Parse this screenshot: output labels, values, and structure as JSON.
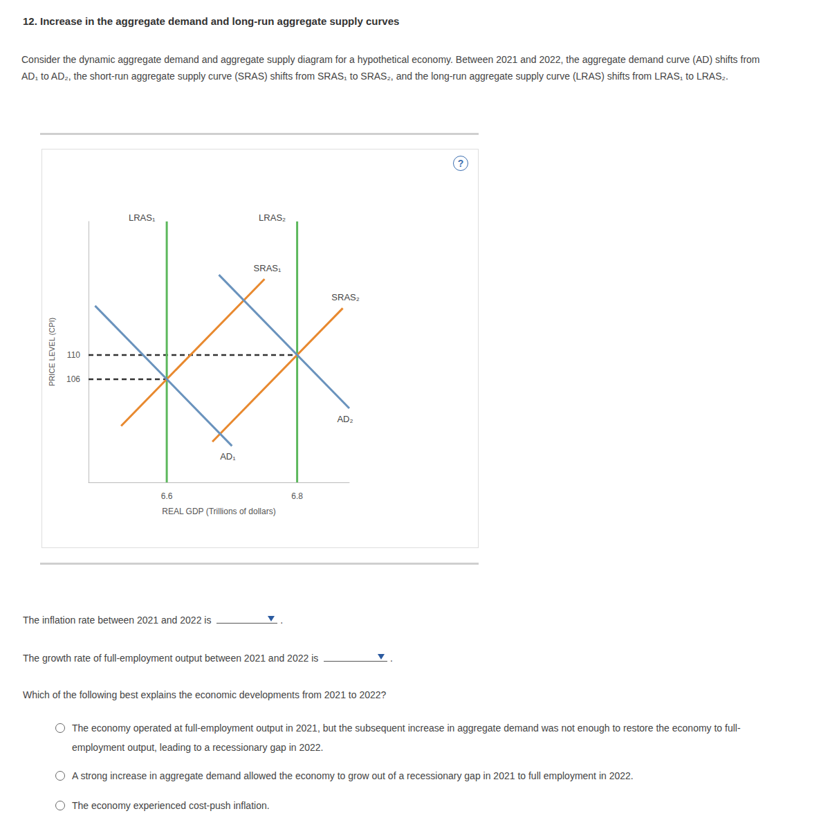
{
  "title": "12. Increase in the aggregate demand and long-run aggregate supply curves",
  "intro": "Consider the dynamic aggregate demand and aggregate supply diagram for a hypothetical economy. Between 2021 and 2022, the aggregate demand curve (AD) shifts from AD₁ to AD₂, the short-run aggregate supply curve (SRAS) shifts from SRAS₁ to SRAS₂, and the long-run aggregate supply curve (LRAS) shifts from LRAS₁ to LRAS₂.",
  "help_icon": "?",
  "chart_data": {
    "type": "line",
    "x_label": "REAL GDP (Trillions of dollars)",
    "y_label": "PRICE LEVEL (CPI)",
    "xlim": [
      6.48,
      6.88
    ],
    "xticks": [
      6.6,
      6.8
    ],
    "ylim": [
      89,
      132
    ],
    "yticks": [
      106,
      110
    ],
    "grid": false,
    "series": [
      {
        "name": "LRAS₁",
        "color": "#5cb85c",
        "points": [
          [
            6.6,
            89
          ],
          [
            6.6,
            132
          ]
        ]
      },
      {
        "name": "LRAS₂",
        "color": "#5cb85c",
        "points": [
          [
            6.8,
            89
          ],
          [
            6.8,
            132
          ]
        ]
      },
      {
        "name": "SRAS₁",
        "color": "#e8892f",
        "points": [
          [
            6.53,
            98.3
          ],
          [
            6.75,
            122.5
          ]
        ]
      },
      {
        "name": "SRAS₂",
        "color": "#e8892f",
        "points": [
          [
            6.67,
            95.7
          ],
          [
            6.87,
            117.7
          ]
        ]
      },
      {
        "name": "AD₁",
        "color": "#6a93bd",
        "points": [
          [
            6.49,
            118.1
          ],
          [
            6.7,
            95.0
          ]
        ]
      },
      {
        "name": "AD₂",
        "color": "#6a93bd",
        "points": [
          [
            6.68,
            123.2
          ],
          [
            6.88,
            101.2
          ]
        ]
      }
    ],
    "guides": [
      {
        "color": "#333333",
        "line_style": "dashed",
        "points": [
          [
            6.48,
            110
          ],
          [
            6.8,
            110
          ]
        ]
      },
      {
        "color": "#333333",
        "line_style": "dashed",
        "points": [
          [
            6.48,
            106
          ],
          [
            6.6,
            106
          ]
        ]
      }
    ]
  },
  "questions": [
    {
      "text": "The inflation rate between 2021 and 2022 is",
      "suffix": "."
    },
    {
      "text": "The growth rate of full-employment output between 2021 and 2022 is",
      "suffix": "."
    }
  ],
  "choice_question": {
    "text": "Which of the following best explains the economic developments from 2021 to 2022?",
    "options": [
      "The economy operated at full-employment output in 2021, but the subsequent increase in aggregate demand was not enough to restore the economy to full-employment output, leading to a recessionary gap in 2022.",
      "A strong increase in aggregate demand allowed the economy to grow out of a recessionary gap in 2021 to full employment in 2022.",
      "The economy experienced cost-push inflation."
    ]
  }
}
